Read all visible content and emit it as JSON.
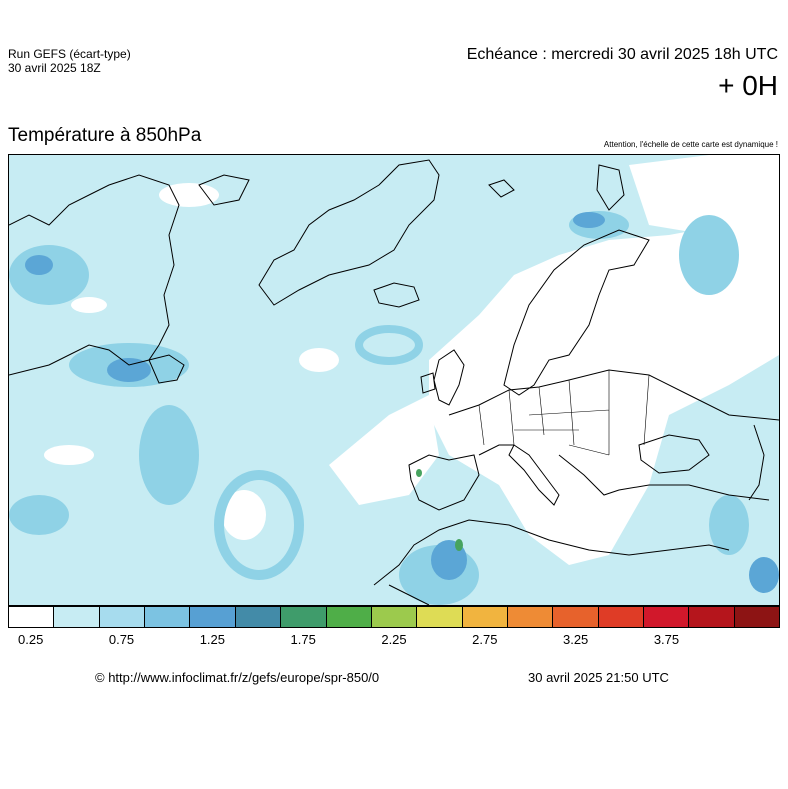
{
  "header": {
    "run_line1": "Run GEFS (écart-type)",
    "run_line2": "30 avril 2025 18Z",
    "echeance": "Echéance : mercredi 30 avril 2025 18h UTC",
    "lead": "+ 0H"
  },
  "map": {
    "title": "Température à 850hPa",
    "warning": "Attention, l'échelle de cette carte est dynamique !",
    "colors": {
      "background": "#c7ecf3",
      "low": "#ffffff",
      "mid": "#8fd2e6",
      "high": "#5ba6d6",
      "peak": "#47a35f",
      "coast": "#000000"
    }
  },
  "scale": {
    "colors": [
      "#ffffff",
      "#c7ecf3",
      "#a7dcee",
      "#7cc3e2",
      "#57a0d3",
      "#438ba8",
      "#3f9c6b",
      "#4fae48",
      "#9cca4d",
      "#dedc55",
      "#f1b43f",
      "#ee8b35",
      "#e7622c",
      "#df3c26",
      "#d1182b",
      "#b5151c",
      "#8d1414"
    ],
    "ticks": [
      "0.25",
      "0.75",
      "1.25",
      "1.75",
      "2.25",
      "2.75",
      "3.25",
      "3.75"
    ]
  },
  "footer": {
    "source": "© http://www.infoclimat.fr/z/gefs/europe/spr-850/0",
    "generated": "30 avril 2025 21:50 UTC"
  }
}
